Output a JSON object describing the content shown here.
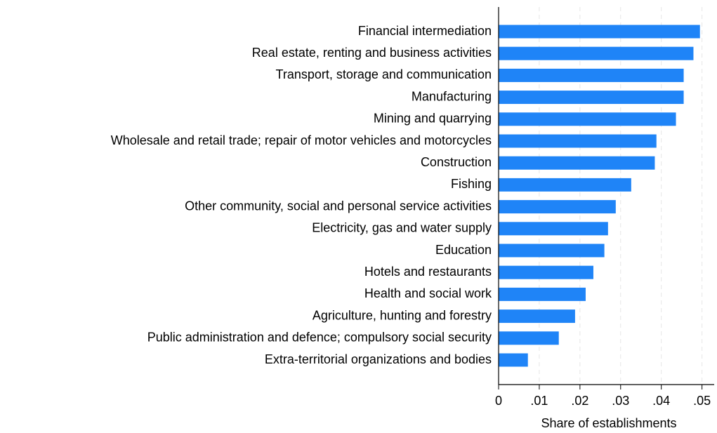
{
  "chart_data": {
    "type": "barh",
    "categories": [
      "Financial intermediation",
      "Real estate, renting and business activities",
      "Transport, storage and communication",
      "Manufacturing",
      "Mining and quarrying",
      "Wholesale and retail trade; repair of motor vehicles and motorcycles",
      "Construction",
      "Fishing",
      "Other community, social and personal service activities",
      "Electricity, gas and water supply",
      "Education",
      "Hotels and restaurants",
      "Health and social work",
      "Agriculture, hunting and forestry",
      "Public administration and defence; compulsory social security",
      "Extra-territorial organizations and bodies"
    ],
    "values": [
      0.0495,
      0.0479,
      0.0455,
      0.0455,
      0.0436,
      0.0388,
      0.0384,
      0.0326,
      0.0288,
      0.0269,
      0.026,
      0.0233,
      0.0214,
      0.0188,
      0.0148,
      0.0072
    ],
    "color": "#1f84f7",
    "xlabel": "Share of establishments",
    "xlim": [
      0,
      0.053
    ],
    "xticks": [
      0,
      {
        "value": 0.01,
        "label": ".01"
      },
      {
        "value": 0.02,
        "label": ".02"
      },
      {
        "value": 0.03,
        "label": ".03"
      },
      {
        "value": 0.04,
        "label": ".04"
      },
      {
        "value": 0.05,
        "label": ".05"
      }
    ],
    "grid": true
  }
}
